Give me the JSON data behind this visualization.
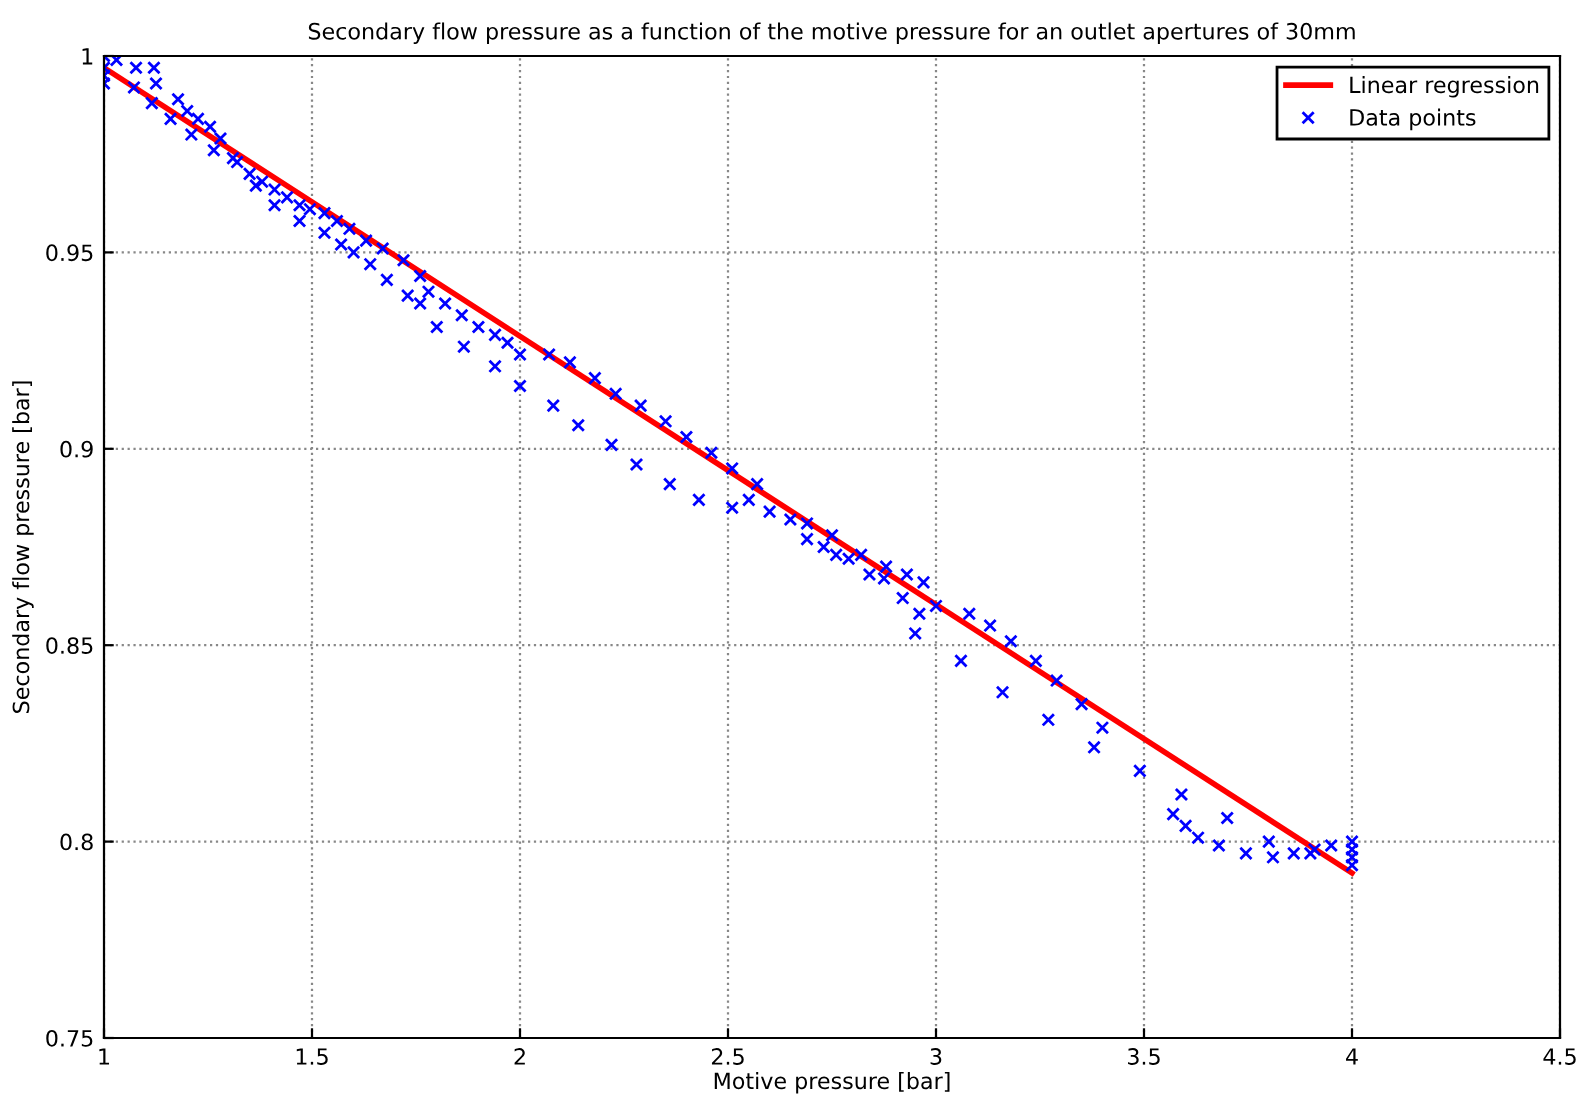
{
  "chart_data": {
    "type": "scatter",
    "title": "Secondary flow pressure as a function of the motive pressure for an outlet apertures of 30mm",
    "xlabel": "Motive pressure [bar]",
    "ylabel": "Secondary flow pressure [bar]",
    "xlim": [
      1,
      4.5
    ],
    "xticks": [
      1,
      1.5,
      2,
      2.5,
      3,
      3.5,
      4,
      4.5
    ],
    "ylim": [
      0.75,
      1
    ],
    "yticks": [
      0.75,
      0.8,
      0.85,
      0.9,
      0.95,
      1
    ],
    "grid": true,
    "legend": "top right",
    "series": [
      {
        "name": "Linear regression",
        "type": "line",
        "color": "#ff0000",
        "line_style": "solid",
        "marker": "none",
        "x": [
          1,
          4
        ],
        "values": [
          0.997,
          0.792
        ]
      },
      {
        "name": "Data points",
        "color": "#0000ff",
        "marker": "cross",
        "x": [
          1.0,
          1.0,
          1.0,
          1.0,
          1.03,
          1.077,
          1.072,
          1.12,
          1.125,
          1.115,
          1.16,
          1.178,
          1.2,
          1.21,
          1.226,
          1.255,
          1.264,
          1.28,
          1.31,
          1.32,
          1.35,
          1.38,
          1.41,
          1.44,
          1.47,
          1.495,
          1.365,
          1.41,
          1.47,
          1.53,
          1.56,
          1.59,
          1.63,
          1.67,
          1.72,
          1.76,
          1.53,
          1.57,
          1.6,
          1.64,
          1.68,
          1.73,
          1.76,
          1.78,
          1.82,
          1.86,
          1.9,
          1.94,
          1.97,
          2.0,
          1.8,
          1.865,
          1.94,
          2.0,
          2.07,
          2.12,
          2.18,
          2.08,
          2.14,
          2.23,
          2.29,
          2.35,
          2.4,
          2.46,
          2.51,
          2.57,
          2.22,
          2.28,
          2.36,
          2.43,
          2.51,
          2.55,
          2.6,
          2.65,
          2.69,
          2.75,
          2.82,
          2.88,
          2.93,
          2.97,
          3.0,
          2.69,
          2.73,
          2.76,
          2.79,
          2.84,
          2.875,
          2.92,
          2.96,
          2.95,
          3.08,
          3.13,
          3.18,
          3.24,
          3.06,
          3.29,
          3.35,
          3.4,
          3.16,
          3.27,
          3.38,
          3.49,
          3.59,
          3.7,
          3.8,
          3.9,
          3.57,
          3.6,
          3.63,
          3.68,
          3.745,
          3.81,
          3.86,
          3.91,
          3.95,
          4.0,
          4.0,
          4.0,
          4.0
        ],
        "values": [
          1.0,
          0.997,
          0.995,
          0.993,
          0.999,
          0.997,
          0.992,
          0.997,
          0.993,
          0.988,
          0.984,
          0.989,
          0.986,
          0.98,
          0.984,
          0.982,
          0.976,
          0.979,
          0.974,
          0.973,
          0.97,
          0.968,
          0.966,
          0.964,
          0.962,
          0.961,
          0.967,
          0.962,
          0.958,
          0.96,
          0.958,
          0.956,
          0.953,
          0.951,
          0.948,
          0.944,
          0.955,
          0.952,
          0.95,
          0.947,
          0.943,
          0.939,
          0.937,
          0.94,
          0.937,
          0.934,
          0.931,
          0.929,
          0.927,
          0.924,
          0.931,
          0.926,
          0.921,
          0.916,
          0.924,
          0.922,
          0.918,
          0.911,
          0.906,
          0.914,
          0.911,
          0.907,
          0.903,
          0.899,
          0.895,
          0.891,
          0.901,
          0.896,
          0.891,
          0.887,
          0.885,
          0.887,
          0.884,
          0.882,
          0.881,
          0.878,
          0.873,
          0.87,
          0.868,
          0.866,
          0.86,
          0.877,
          0.875,
          0.873,
          0.872,
          0.868,
          0.867,
          0.862,
          0.858,
          0.853,
          0.858,
          0.855,
          0.851,
          0.846,
          0.846,
          0.841,
          0.835,
          0.829,
          0.838,
          0.831,
          0.824,
          0.818,
          0.812,
          0.806,
          0.8,
          0.797,
          0.807,
          0.804,
          0.801,
          0.799,
          0.797,
          0.796,
          0.797,
          0.798,
          0.799,
          0.8,
          0.798,
          0.796,
          0.794
        ]
      }
    ]
  }
}
